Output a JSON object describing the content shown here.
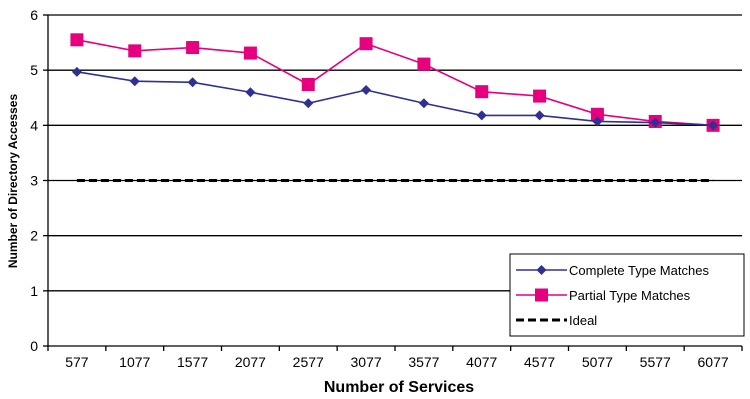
{
  "chart_data": {
    "type": "line",
    "xlabel": "Number of Services",
    "ylabel": "Number of Directory Accesses",
    "categories": [
      "577",
      "1077",
      "1577",
      "2077",
      "2577",
      "3077",
      "3577",
      "4077",
      "4577",
      "5077",
      "5577",
      "6077"
    ],
    "ylim": [
      0,
      6
    ],
    "yticks": [
      0,
      1,
      2,
      3,
      4,
      5,
      6
    ],
    "grid": "horizontal",
    "legend_position": "bottom-right",
    "series": [
      {
        "name": "Complete Type Matches",
        "color": "#2e3192",
        "marker": "diamond",
        "line": "solid",
        "values": [
          4.97,
          4.8,
          4.78,
          4.6,
          4.4,
          4.64,
          4.4,
          4.18,
          4.18,
          4.07,
          4.05,
          4.0
        ]
      },
      {
        "name": "Partial Type Matches",
        "color": "#e6007e",
        "marker": "square",
        "line": "solid",
        "values": [
          5.55,
          5.35,
          5.41,
          5.31,
          4.74,
          5.48,
          5.11,
          4.61,
          4.53,
          4.2,
          4.07,
          4.0
        ]
      },
      {
        "name": "Ideal",
        "color": "#000000",
        "marker": "none",
        "line": "dashed",
        "values": [
          3,
          3,
          3,
          3,
          3,
          3,
          3,
          3,
          3,
          3,
          3,
          3
        ]
      }
    ]
  }
}
